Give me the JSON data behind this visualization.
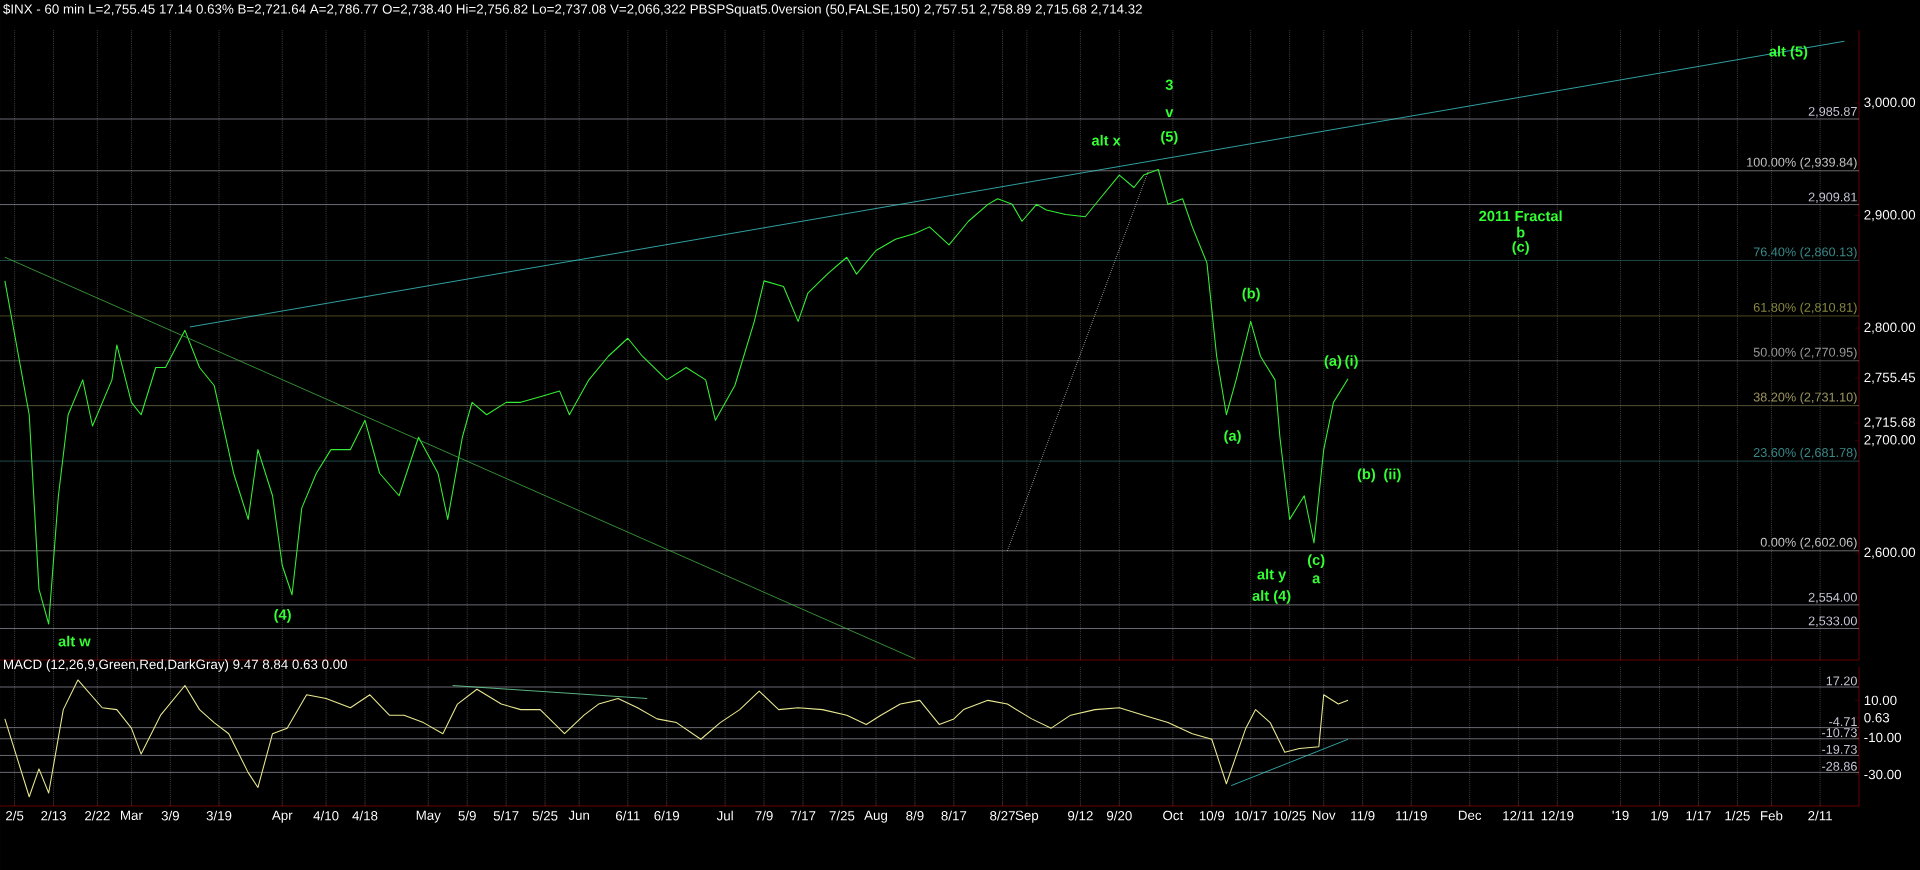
{
  "chart_data": [
    {
      "type": "line",
      "title": "$INX - 60 min L=2,755.45 17.14 0.63% B=2,721.64 A=2,786.77 O=2,738.40 Hi=2,756.82 Lo=2,737.08 V=2,066,322 PBSPSquat5.0version (50,FALSE,150) 2,757.51 2,758.89 2,715.68 2,714.32",
      "xlim": [
        "2018-02-02",
        "2019-02-19"
      ],
      "ylim": [
        2505,
        3065
      ],
      "xticks": [
        {
          "value": "2018-02-05",
          "label": null
        },
        {
          "value": "2018-02-13",
          "label": null
        },
        {
          "value": "2018-02-22",
          "label": null
        },
        {
          "value": "2018-03-01",
          "label": null
        },
        {
          "value": "2018-03-09",
          "label": null
        },
        {
          "value": "2018-03-19",
          "label": null
        },
        {
          "value": "2018-04-01",
          "label": null
        },
        {
          "value": "2018-04-10",
          "label": null
        },
        {
          "value": "2018-04-18",
          "label": null
        },
        {
          "value": "2018-05-01",
          "label": null
        },
        {
          "value": "2018-05-09",
          "label": null
        },
        {
          "value": "2018-05-17",
          "label": null
        },
        {
          "value": "2018-05-25",
          "label": null
        },
        {
          "value": "2018-06-01",
          "label": null
        },
        {
          "value": "2018-06-11",
          "label": null
        },
        {
          "value": "2018-06-19",
          "label": null
        },
        {
          "value": "2018-07-01",
          "label": null
        },
        {
          "value": "2018-07-09",
          "label": null
        },
        {
          "value": "2018-07-17",
          "label": null
        },
        {
          "value": "2018-07-25",
          "label": null
        },
        {
          "value": "2018-08-01",
          "label": null
        },
        {
          "value": "2018-08-09",
          "label": null
        },
        {
          "value": "2018-08-17",
          "label": null
        },
        {
          "value": "2018-08-27",
          "label": null
        },
        {
          "value": "2018-09-01",
          "label": null
        },
        {
          "value": "2018-09-12",
          "label": null
        },
        {
          "value": "2018-09-20",
          "label": null
        },
        {
          "value": "2018-10-01",
          "label": null
        },
        {
          "value": "2018-10-09",
          "label": null
        },
        {
          "value": "2018-10-17",
          "label": null
        },
        {
          "value": "2018-10-25",
          "label": null
        },
        {
          "value": "2018-11-01",
          "label": null
        },
        {
          "value": "2018-11-09",
          "label": null
        },
        {
          "value": "2018-11-19",
          "label": null
        },
        {
          "value": "2018-12-01",
          "label": null
        },
        {
          "value": "2018-12-11",
          "label": null
        },
        {
          "value": "2018-12-19",
          "label": null
        },
        {
          "value": "2019-01-01",
          "label": null
        },
        {
          "value": "2019-01-09",
          "label": null
        },
        {
          "value": "2019-01-17",
          "label": null
        },
        {
          "value": "2019-01-25",
          "label": null
        },
        {
          "value": "2019-02-01",
          "label": null
        },
        {
          "value": "2019-02-11",
          "label": null
        }
      ],
      "yticks": [
        {
          "value": 2600,
          "label": "2,600.00"
        },
        {
          "value": 2700,
          "label": "2,700.00"
        },
        {
          "value": 2715.68,
          "label": "2,715.68"
        },
        {
          "value": 2755.45,
          "label": "2,755.45"
        },
        {
          "value": 2800,
          "label": "2,800.00"
        },
        {
          "value": 2900,
          "label": "2,900.00"
        },
        {
          "value": 3000,
          "label": "3,000.00"
        }
      ],
      "tick_labels": "y",
      "grid": "x",
      "marker": "none",
      "series": [
        {
          "color": "#33ee33",
          "x": [
            "2018-02-03",
            "2018-02-08",
            "2018-02-10",
            "2018-02-12",
            "2018-02-14",
            "2018-02-16",
            "2018-02-19",
            "2018-02-21",
            "2018-02-25",
            "2018-02-26",
            "2018-03-01",
            "2018-03-03",
            "2018-03-06",
            "2018-03-08",
            "2018-03-12",
            "2018-03-15",
            "2018-03-18",
            "2018-03-22",
            "2018-03-25",
            "2018-03-27",
            "2018-03-30",
            "2018-04-01",
            "2018-04-03",
            "2018-04-05",
            "2018-04-08",
            "2018-04-11",
            "2018-04-15",
            "2018-04-18",
            "2018-04-21",
            "2018-04-25",
            "2018-04-29",
            "2018-05-03",
            "2018-05-05",
            "2018-05-08",
            "2018-05-10",
            "2018-05-13",
            "2018-05-17",
            "2018-05-20",
            "2018-05-24",
            "2018-05-28",
            "2018-05-30",
            "2018-06-03",
            "2018-06-07",
            "2018-06-11",
            "2018-06-14",
            "2018-06-19",
            "2018-06-23",
            "2018-06-27",
            "2018-06-29",
            "2018-07-03",
            "2018-07-07",
            "2018-07-09",
            "2018-07-13",
            "2018-07-16",
            "2018-07-18",
            "2018-07-22",
            "2018-07-26",
            "2018-07-28",
            "2018-08-01",
            "2018-08-05",
            "2018-08-09",
            "2018-08-12",
            "2018-08-16",
            "2018-08-20",
            "2018-08-24",
            "2018-08-26",
            "2018-08-29",
            "2018-08-31",
            "2018-09-03",
            "2018-09-05",
            "2018-09-09",
            "2018-09-13",
            "2018-09-16",
            "2018-09-20",
            "2018-09-23",
            "2018-09-25",
            "2018-09-28",
            "2018-09-30",
            "2018-10-03",
            "2018-10-05",
            "2018-10-08",
            "2018-10-10",
            "2018-10-12",
            "2018-10-14",
            "2018-10-17",
            "2018-10-19",
            "2018-10-22",
            "2018-10-23",
            "2018-10-25",
            "2018-10-28",
            "2018-10-30",
            "2018-11-01",
            "2018-11-03",
            "2018-11-06"
          ],
          "values": [
            2842,
            2723,
            2568,
            2537,
            2651,
            2723,
            2754,
            2713,
            2754,
            2785,
            2734,
            2723,
            2765,
            2765,
            2798,
            2765,
            2749,
            2671,
            2630,
            2692,
            2651,
            2589,
            2563,
            2640,
            2671,
            2692,
            2692,
            2718,
            2671,
            2651,
            2703,
            2671,
            2630,
            2703,
            2734,
            2723,
            2734,
            2734,
            2739,
            2744,
            2723,
            2754,
            2775,
            2791,
            2775,
            2754,
            2765,
            2754,
            2718,
            2749,
            2806,
            2842,
            2837,
            2806,
            2831,
            2848,
            2863,
            2848,
            2869,
            2879,
            2884,
            2890,
            2874,
            2895,
            2910,
            2915,
            2910,
            2895,
            2910,
            2905,
            2901,
            2899,
            2915,
            2936,
            2925,
            2936,
            2941,
            2910,
            2915,
            2890,
            2858,
            2775,
            2723,
            2754,
            2806,
            2775,
            2754,
            2703,
            2630,
            2651,
            2609,
            2692,
            2734,
            2755
          ]
        },
        {
          "type": "line",
          "color": "#3cc8c8",
          "line_style": "solid",
          "x": [
            "2018-03-13",
            "2019-02-16"
          ],
          "values": [
            2801,
            3055
          ]
        },
        {
          "type": "line",
          "color": "#40b040",
          "line_style": "solid",
          "x": [
            "2018-02-03",
            "2018-08-09"
          ],
          "values": [
            2863,
            2506
          ]
        },
        {
          "type": "line",
          "color": "#dddddd",
          "line_style": "dotted",
          "x": [
            "2018-08-28",
            "2018-09-26"
          ],
          "values": [
            2602,
            2940
          ]
        }
      ],
      "ref_lines": [
        {
          "axis": "y",
          "value": 2985.87,
          "label": "2,985.87",
          "color": "#c8c8d8"
        },
        {
          "axis": "y",
          "value": 2939.84,
          "label": "100.00% (2,939.84)",
          "color": "#c8c8c8"
        },
        {
          "axis": "y",
          "value": 2909.81,
          "label": "2,909.81",
          "color": "#c8c8d8"
        },
        {
          "axis": "y",
          "value": 2860.13,
          "label": "76.40% (2,860.13)",
          "color": "#3a8a8a"
        },
        {
          "axis": "y",
          "value": 2810.81,
          "label": "61.80% (2,810.81)",
          "color": "#8a8a40"
        },
        {
          "axis": "y",
          "value": 2770.95,
          "label": "50.00% (2,770.95)",
          "color": "#9a9a9a"
        },
        {
          "axis": "y",
          "value": 2731.1,
          "label": "38.20% (2,731.10)",
          "color": "#a09a60"
        },
        {
          "axis": "y",
          "value": 2681.78,
          "label": "23.60% (2,681.78)",
          "color": "#3a8a8a"
        },
        {
          "axis": "y",
          "value": 2602.06,
          "label": "0.00% (2,602.06)",
          "color": "#c8c8c8"
        },
        {
          "axis": "y",
          "value": 2554.0,
          "label": "2,554.00",
          "color": "#c8c8d8"
        },
        {
          "axis": "y",
          "value": 2533.0,
          "label": "2,533.00",
          "color": "#c8c8d8"
        }
      ],
      "annotations": [
        "alt w",
        "(4)",
        "3",
        "v",
        "(5)",
        "alt x",
        "(b)",
        "(a)",
        "(a)",
        "(i)",
        "(b)",
        "(ii)",
        "(c)",
        "a",
        "alt y",
        "alt (4)",
        "2011 Fractal",
        "b",
        "(c)",
        "alt (5)"
      ]
    },
    {
      "type": "line",
      "title": "MACD (12,26,9,Green,Red,DarkGray) 9.47 8.84 0.63 0.00",
      "xlim": [
        "2018-02-02",
        "2019-02-19"
      ],
      "ylim": [
        -47,
        28
      ],
      "xticks": [
        {
          "value": "2018-02-05",
          "label": "2/5"
        },
        {
          "value": "2018-02-13",
          "label": "2/13"
        },
        {
          "value": "2018-02-22",
          "label": "2/22"
        },
        {
          "value": "2018-03-01",
          "label": "Mar"
        },
        {
          "value": "2018-03-09",
          "label": "3/9"
        },
        {
          "value": "2018-03-19",
          "label": "3/19"
        },
        {
          "value": "2018-04-01",
          "label": "Apr"
        },
        {
          "value": "2018-04-10",
          "label": "4/10"
        },
        {
          "value": "2018-04-18",
          "label": "4/18"
        },
        {
          "value": "2018-05-01",
          "label": "May"
        },
        {
          "value": "2018-05-09",
          "label": "5/9"
        },
        {
          "value": "2018-05-17",
          "label": "5/17"
        },
        {
          "value": "2018-05-25",
          "label": "5/25"
        },
        {
          "value": "2018-06-01",
          "label": "Jun"
        },
        {
          "value": "2018-06-11",
          "label": "6/11"
        },
        {
          "value": "2018-06-19",
          "label": "6/19"
        },
        {
          "value": "2018-07-01",
          "label": "Jul"
        },
        {
          "value": "2018-07-09",
          "label": "7/9"
        },
        {
          "value": "2018-07-17",
          "label": "7/17"
        },
        {
          "value": "2018-07-25",
          "label": "7/25"
        },
        {
          "value": "2018-08-01",
          "label": "Aug"
        },
        {
          "value": "2018-08-09",
          "label": "8/9"
        },
        {
          "value": "2018-08-17",
          "label": "8/17"
        },
        {
          "value": "2018-08-27",
          "label": "8/27"
        },
        {
          "value": "2018-09-01",
          "label": "Sep"
        },
        {
          "value": "2018-09-12",
          "label": "9/12"
        },
        {
          "value": "2018-09-20",
          "label": "9/20"
        },
        {
          "value": "2018-10-01",
          "label": "Oct"
        },
        {
          "value": "2018-10-09",
          "label": "10/9"
        },
        {
          "value": "2018-10-17",
          "label": "10/17"
        },
        {
          "value": "2018-10-25",
          "label": "10/25"
        },
        {
          "value": "2018-11-01",
          "label": "Nov"
        },
        {
          "value": "2018-11-09",
          "label": "11/9"
        },
        {
          "value": "2018-11-19",
          "label": "11/19"
        },
        {
          "value": "2018-12-01",
          "label": "Dec"
        },
        {
          "value": "2018-12-11",
          "label": "12/11"
        },
        {
          "value": "2018-12-19",
          "label": "12/19"
        },
        {
          "value": "2019-01-01",
          "label": "'19"
        },
        {
          "value": "2019-01-09",
          "label": "1/9"
        },
        {
          "value": "2019-01-17",
          "label": "1/17"
        },
        {
          "value": "2019-01-25",
          "label": "1/25"
        },
        {
          "value": "2019-02-01",
          "label": "Feb"
        },
        {
          "value": "2019-02-11",
          "label": "2/11"
        }
      ],
      "yticks": [
        {
          "value": -30,
          "label": "-30.00"
        },
        {
          "value": -10,
          "label": "-10.00"
        },
        {
          "value": 0.63,
          "label": "0.63"
        },
        {
          "value": 10,
          "label": "10.00"
        }
      ],
      "grid": "x",
      "marker": "none",
      "series": [
        {
          "color": "#e8e890",
          "x": [
            "2018-02-03",
            "2018-02-08",
            "2018-02-10",
            "2018-02-12",
            "2018-02-15",
            "2018-02-18",
            "2018-02-23",
            "2018-02-26",
            "2018-03-01",
            "2018-03-03",
            "2018-03-07",
            "2018-03-12",
            "2018-03-15",
            "2018-03-18",
            "2018-03-21",
            "2018-03-25",
            "2018-03-27",
            "2018-03-30",
            "2018-04-02",
            "2018-04-06",
            "2018-04-10",
            "2018-04-15",
            "2018-04-19",
            "2018-04-23",
            "2018-04-26",
            "2018-04-30",
            "2018-05-04",
            "2018-05-07",
            "2018-05-11",
            "2018-05-16",
            "2018-05-20",
            "2018-05-24",
            "2018-05-29",
            "2018-06-02",
            "2018-06-05",
            "2018-06-09",
            "2018-06-13",
            "2018-06-17",
            "2018-06-21",
            "2018-06-26",
            "2018-06-30",
            "2018-07-04",
            "2018-07-08",
            "2018-07-12",
            "2018-07-16",
            "2018-07-21",
            "2018-07-26",
            "2018-07-30",
            "2018-08-02",
            "2018-08-06",
            "2018-08-10",
            "2018-08-14",
            "2018-08-17",
            "2018-08-19",
            "2018-08-24",
            "2018-08-28",
            "2018-09-02",
            "2018-09-06",
            "2018-09-10",
            "2018-09-15",
            "2018-09-20",
            "2018-09-25",
            "2018-09-30",
            "2018-10-05",
            "2018-10-09",
            "2018-10-12",
            "2018-10-16",
            "2018-10-18",
            "2018-10-21",
            "2018-10-24",
            "2018-10-27",
            "2018-10-31",
            "2018-11-01",
            "2018-11-04",
            "2018-11-06"
          ],
          "values": [
            0,
            -42,
            -27,
            -40,
            5,
            21,
            6,
            5,
            -5,
            -19,
            2,
            18,
            5,
            -2,
            -8,
            -29,
            -37,
            -8,
            -5,
            13,
            11,
            6,
            13,
            2,
            2,
            -2,
            -8,
            8,
            16,
            8,
            5,
            5,
            -8,
            2,
            8,
            11,
            6,
            0,
            -2,
            -11,
            -2,
            5,
            15,
            5,
            6,
            5,
            2,
            -3,
            2,
            8,
            10,
            -3,
            0,
            5,
            10,
            8,
            0,
            -5,
            2,
            5,
            6,
            2,
            -2,
            -8,
            -11,
            -35,
            -5,
            5,
            -2,
            -18,
            -16,
            -15,
            13,
            8,
            10
          ]
        },
        {
          "type": "line",
          "color": "#70e0a0",
          "line_style": "solid",
          "x": [
            "2018-05-06",
            "2018-06-15"
          ],
          "values": [
            18,
            11
          ]
        },
        {
          "type": "line",
          "color": "#3cc8c8",
          "line_style": "solid",
          "x": [
            "2018-10-13",
            "2018-11-06"
          ],
          "values": [
            -36,
            -11
          ]
        }
      ],
      "ref_lines": [
        {
          "axis": "y",
          "value": 17.2,
          "label": "17.20",
          "color": "#c8c8d8"
        },
        {
          "axis": "y",
          "value": -4.71,
          "label": "-4.71",
          "color": "#c8c8d8"
        },
        {
          "axis": "y",
          "value": -10.73,
          "label": "-10.73",
          "color": "#c8c8d8"
        },
        {
          "axis": "y",
          "value": -19.73,
          "label": "-19.73",
          "color": "#c8c8d8"
        },
        {
          "axis": "y",
          "value": -28.86,
          "label": "-28.86",
          "color": "#c8c8d8"
        }
      ]
    }
  ]
}
